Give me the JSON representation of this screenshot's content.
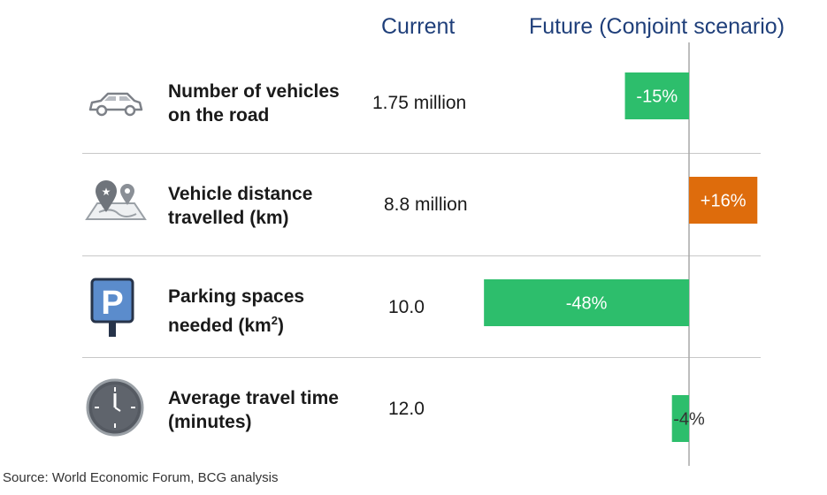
{
  "headers": {
    "current": "Current",
    "future": "Future (Conjoint scenario)"
  },
  "rows": [
    {
      "label_line1": "Number of vehicles",
      "label_line2": "on the road",
      "current": "1.75 million",
      "icon": "car-icon"
    },
    {
      "label_line1": "Vehicle distance",
      "label_line2": "travelled (km)",
      "current": "8.8 million",
      "icon": "map-pins-icon"
    },
    {
      "label_line1": "Parking spaces",
      "label_line2": "needed (km",
      "label_sup": "2",
      "label_tail": ")",
      "current": "10.0",
      "icon": "parking-sign-icon"
    },
    {
      "label_line1": "Average travel time",
      "label_line2": "(minutes)",
      "current": "12.0",
      "icon": "clock-icon"
    }
  ],
  "source": "Source: World Economic Forum, BCG analysis",
  "colors": {
    "negative": "#2dbe6c",
    "positive": "#de6c0c",
    "header": "#1f3f7a",
    "icon": "#7d8188"
  },
  "chart_data": {
    "type": "bar",
    "orientation": "horizontal",
    "categories": [
      "Number of vehicles on the road",
      "Vehicle distance travelled (km)",
      "Parking spaces needed (km2)",
      "Average travel time (minutes)"
    ],
    "values": [
      -15,
      16,
      -48,
      -4
    ],
    "data_labels": [
      "-15%",
      "+16%",
      "-48%",
      "-4%"
    ],
    "xlabel": "Future (Conjoint scenario)",
    "baseline": 0,
    "grid": false
  }
}
